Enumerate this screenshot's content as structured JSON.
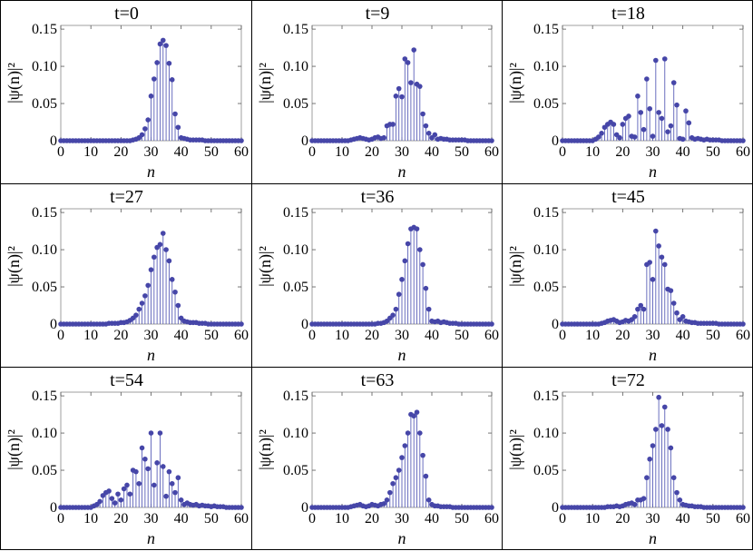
{
  "chart_data": [
    {
      "type": "scatter",
      "title": "t=0",
      "xlabel": "n",
      "ylabel": "|ψ(n)|²",
      "xlim": [
        0,
        60
      ],
      "ylim": [
        0,
        0.155
      ],
      "xticks": [
        "0",
        "10",
        "20",
        "30",
        "40",
        "50",
        "60"
      ],
      "yticks": [
        "0",
        "0.05",
        "0.10",
        "0.15"
      ],
      "x": [
        0,
        1,
        2,
        3,
        4,
        5,
        6,
        7,
        8,
        9,
        10,
        11,
        12,
        13,
        14,
        15,
        16,
        17,
        18,
        19,
        20,
        21,
        22,
        23,
        24,
        25,
        26,
        27,
        28,
        29,
        30,
        31,
        32,
        33,
        34,
        35,
        36,
        37,
        38,
        39,
        40,
        41,
        42,
        43,
        44,
        45,
        46,
        47,
        48,
        49,
        50,
        51,
        52,
        53,
        54,
        55,
        56,
        57,
        58,
        59,
        60
      ],
      "y": [
        0,
        0,
        0,
        0,
        0,
        0,
        0,
        0,
        0,
        0,
        0,
        0,
        0,
        0,
        0,
        0,
        0,
        0,
        0,
        0,
        0,
        0,
        0,
        0,
        0.001,
        0.002,
        0.004,
        0.008,
        0.016,
        0.028,
        0.06,
        0.083,
        0.105,
        0.13,
        0.135,
        0.128,
        0.104,
        0.082,
        0.036,
        0.018,
        0.004,
        0.003,
        0.002,
        0.001,
        0.001,
        0.001,
        0.001,
        0.001,
        0,
        0,
        0,
        0,
        0,
        0,
        0,
        0,
        0,
        0,
        0,
        0,
        0
      ]
    },
    {
      "type": "scatter",
      "title": "t=9",
      "xlabel": "n",
      "ylabel": "|ψ(n)|²",
      "xlim": [
        0,
        60
      ],
      "ylim": [
        0,
        0.155
      ],
      "xticks": [
        "0",
        "10",
        "20",
        "30",
        "40",
        "50",
        "60"
      ],
      "yticks": [
        "0",
        "0.05",
        "0.10",
        "0.15"
      ],
      "x": [
        0,
        1,
        2,
        3,
        4,
        5,
        6,
        7,
        8,
        9,
        10,
        11,
        12,
        13,
        14,
        15,
        16,
        17,
        18,
        19,
        20,
        21,
        22,
        23,
        24,
        25,
        26,
        27,
        28,
        29,
        30,
        31,
        32,
        33,
        34,
        35,
        36,
        37,
        38,
        39,
        40,
        41,
        42,
        43,
        44,
        45,
        46,
        47,
        48,
        49,
        50,
        51,
        52,
        53,
        54,
        55,
        56,
        57,
        58,
        59,
        60
      ],
      "y": [
        0,
        0,
        0,
        0,
        0,
        0,
        0,
        0,
        0,
        0,
        0,
        0,
        0,
        0.001,
        0.002,
        0.003,
        0.004,
        0.003,
        0.002,
        0.001,
        0.002,
        0.004,
        0.005,
        0.003,
        0.004,
        0.02,
        0.022,
        0.022,
        0.06,
        0.07,
        0.059,
        0.11,
        0.105,
        0.078,
        0.122,
        0.076,
        0.073,
        0.036,
        0.02,
        0.01,
        0.004,
        0.008,
        0.002,
        0.003,
        0.002,
        0.002,
        0.001,
        0.001,
        0.001,
        0.001,
        0.001,
        0.001,
        0,
        0,
        0,
        0,
        0,
        0,
        0,
        0,
        0
      ]
    },
    {
      "type": "scatter",
      "title": "t=18",
      "xlabel": "n",
      "ylabel": "|ψ(n)|²",
      "xlim": [
        0,
        60
      ],
      "ylim": [
        0,
        0.155
      ],
      "xticks": [
        "0",
        "10",
        "20",
        "30",
        "40",
        "50",
        "60"
      ],
      "yticks": [
        "0",
        "0.05",
        "0.10",
        "0.15"
      ],
      "x": [
        0,
        1,
        2,
        3,
        4,
        5,
        6,
        7,
        8,
        9,
        10,
        11,
        12,
        13,
        14,
        15,
        16,
        17,
        18,
        19,
        20,
        21,
        22,
        23,
        24,
        25,
        26,
        27,
        28,
        29,
        30,
        31,
        32,
        33,
        34,
        35,
        36,
        37,
        38,
        39,
        40,
        41,
        42,
        43,
        44,
        45,
        46,
        47,
        48,
        49,
        50,
        51,
        52,
        53,
        54,
        55,
        56,
        57,
        58,
        59,
        60
      ],
      "y": [
        0,
        0,
        0,
        0,
        0,
        0,
        0,
        0,
        0,
        0,
        0,
        0.002,
        0.005,
        0.01,
        0.018,
        0.022,
        0.025,
        0.022,
        0.008,
        0.004,
        0.022,
        0.03,
        0.033,
        0.006,
        0.005,
        0.06,
        0.038,
        0.015,
        0.083,
        0.043,
        0.006,
        0.108,
        0.038,
        0.03,
        0.11,
        0.012,
        0.02,
        0.078,
        0.048,
        0.003,
        0.002,
        0.04,
        0.024,
        0.004,
        0.002,
        0.003,
        0.002,
        0.001,
        0.002,
        0.001,
        0.001,
        0.001,
        0.001,
        0,
        0,
        0,
        0,
        0,
        0,
        0,
        0
      ]
    },
    {
      "type": "scatter",
      "title": "t=27",
      "xlabel": "n",
      "ylabel": "|ψ(n)|²",
      "xlim": [
        0,
        60
      ],
      "ylim": [
        0,
        0.155
      ],
      "xticks": [
        "0",
        "10",
        "20",
        "30",
        "40",
        "50",
        "60"
      ],
      "yticks": [
        "0",
        "0.05",
        "0.10",
        "0.15"
      ],
      "x": [
        0,
        1,
        2,
        3,
        4,
        5,
        6,
        7,
        8,
        9,
        10,
        11,
        12,
        13,
        14,
        15,
        16,
        17,
        18,
        19,
        20,
        21,
        22,
        23,
        24,
        25,
        26,
        27,
        28,
        29,
        30,
        31,
        32,
        33,
        34,
        35,
        36,
        37,
        38,
        39,
        40,
        41,
        42,
        43,
        44,
        45,
        46,
        47,
        48,
        49,
        50,
        51,
        52,
        53,
        54,
        55,
        56,
        57,
        58,
        59,
        60
      ],
      "y": [
        0,
        0,
        0,
        0,
        0,
        0,
        0,
        0,
        0,
        0,
        0,
        0,
        0,
        0,
        0,
        0,
        0.001,
        0.001,
        0.001,
        0.001,
        0.002,
        0.002,
        0.003,
        0.005,
        0.008,
        0.012,
        0.02,
        0.028,
        0.038,
        0.052,
        0.073,
        0.09,
        0.103,
        0.107,
        0.122,
        0.1,
        0.085,
        0.06,
        0.043,
        0.025,
        0.008,
        0.004,
        0.003,
        0.002,
        0.002,
        0.002,
        0.001,
        0.001,
        0.001,
        0,
        0,
        0,
        0,
        0,
        0,
        0,
        0,
        0,
        0,
        0,
        0
      ]
    },
    {
      "type": "scatter",
      "title": "t=36",
      "xlabel": "n",
      "ylabel": "|ψ(n)|²",
      "xlim": [
        0,
        60
      ],
      "ylim": [
        0,
        0.155
      ],
      "xticks": [
        "0",
        "10",
        "20",
        "30",
        "40",
        "50",
        "60"
      ],
      "yticks": [
        "0",
        "0.05",
        "0.10",
        "0.15"
      ],
      "x": [
        0,
        1,
        2,
        3,
        4,
        5,
        6,
        7,
        8,
        9,
        10,
        11,
        12,
        13,
        14,
        15,
        16,
        17,
        18,
        19,
        20,
        21,
        22,
        23,
        24,
        25,
        26,
        27,
        28,
        29,
        30,
        31,
        32,
        33,
        34,
        35,
        36,
        37,
        38,
        39,
        40,
        41,
        42,
        43,
        44,
        45,
        46,
        47,
        48,
        49,
        50,
        51,
        52,
        53,
        54,
        55,
        56,
        57,
        58,
        59,
        60
      ],
      "y": [
        0,
        0,
        0,
        0,
        0,
        0,
        0,
        0,
        0,
        0,
        0,
        0,
        0,
        0,
        0,
        0,
        0,
        0,
        0,
        0,
        0,
        0,
        0.001,
        0.001,
        0.002,
        0.004,
        0.008,
        0.012,
        0.02,
        0.04,
        0.06,
        0.085,
        0.108,
        0.128,
        0.13,
        0.128,
        0.1,
        0.08,
        0.048,
        0.02,
        0.004,
        0.003,
        0.004,
        0.002,
        0.003,
        0.002,
        0.001,
        0.001,
        0.001,
        0,
        0,
        0,
        0,
        0,
        0,
        0,
        0,
        0,
        0,
        0,
        0
      ]
    },
    {
      "type": "scatter",
      "title": "t=45",
      "xlabel": "n",
      "ylabel": "|ψ(n)|²",
      "xlim": [
        0,
        60
      ],
      "ylim": [
        0,
        0.155
      ],
      "xticks": [
        "0",
        "10",
        "20",
        "30",
        "40",
        "50",
        "60"
      ],
      "yticks": [
        "0",
        "0.05",
        "0.10",
        "0.15"
      ],
      "x": [
        0,
        1,
        2,
        3,
        4,
        5,
        6,
        7,
        8,
        9,
        10,
        11,
        12,
        13,
        14,
        15,
        16,
        17,
        18,
        19,
        20,
        21,
        22,
        23,
        24,
        25,
        26,
        27,
        28,
        29,
        30,
        31,
        32,
        33,
        34,
        35,
        36,
        37,
        38,
        39,
        40,
        41,
        42,
        43,
        44,
        45,
        46,
        47,
        48,
        49,
        50,
        51,
        52,
        53,
        54,
        55,
        56,
        57,
        58,
        59,
        60
      ],
      "y": [
        0,
        0,
        0,
        0,
        0,
        0,
        0,
        0,
        0,
        0,
        0,
        0,
        0,
        0.001,
        0.002,
        0.004,
        0.005,
        0.006,
        0.004,
        0.002,
        0.003,
        0.005,
        0.004,
        0.006,
        0.01,
        0.02,
        0.025,
        0.02,
        0.08,
        0.083,
        0.06,
        0.125,
        0.105,
        0.09,
        0.08,
        0.047,
        0.045,
        0.028,
        0.015,
        0.006,
        0.01,
        0.004,
        0.003,
        0.002,
        0.002,
        0.001,
        0.001,
        0.001,
        0.001,
        0.001,
        0.001,
        0.001,
        0,
        0,
        0,
        0,
        0,
        0,
        0,
        0,
        0
      ]
    },
    {
      "type": "scatter",
      "title": "t=54",
      "xlabel": "n",
      "ylabel": "|ψ(n)|²",
      "xlim": [
        0,
        60
      ],
      "ylim": [
        0,
        0.155
      ],
      "xticks": [
        "0",
        "10",
        "20",
        "30",
        "40",
        "50",
        "60"
      ],
      "yticks": [
        "0",
        "0.05",
        "0.10",
        "0.15"
      ],
      "x": [
        0,
        1,
        2,
        3,
        4,
        5,
        6,
        7,
        8,
        9,
        10,
        11,
        12,
        13,
        14,
        15,
        16,
        17,
        18,
        19,
        20,
        21,
        22,
        23,
        24,
        25,
        26,
        27,
        28,
        29,
        30,
        31,
        32,
        33,
        34,
        35,
        36,
        37,
        38,
        39,
        40,
        41,
        42,
        43,
        44,
        45,
        46,
        47,
        48,
        49,
        50,
        51,
        52,
        53,
        54,
        55,
        56,
        57,
        58,
        59,
        60
      ],
      "y": [
        0,
        0,
        0,
        0,
        0,
        0,
        0,
        0,
        0,
        0,
        0,
        0.002,
        0.004,
        0.008,
        0.016,
        0.02,
        0.022,
        0.012,
        0.006,
        0.018,
        0.01,
        0.025,
        0.03,
        0.018,
        0.05,
        0.048,
        0.032,
        0.08,
        0.065,
        0.052,
        0.1,
        0.03,
        0.06,
        0.1,
        0.055,
        0.015,
        0.048,
        0.032,
        0.02,
        0.04,
        0.01,
        0.004,
        0.006,
        0.004,
        0.003,
        0.004,
        0.002,
        0.003,
        0.002,
        0.002,
        0.001,
        0.002,
        0.001,
        0.001,
        0.001,
        0,
        0,
        0,
        0,
        0,
        0
      ]
    },
    {
      "type": "scatter",
      "title": "t=63",
      "xlabel": "n",
      "ylabel": "|ψ(n)|²",
      "xlim": [
        0,
        60
      ],
      "ylim": [
        0,
        0.155
      ],
      "xticks": [
        "0",
        "10",
        "20",
        "30",
        "40",
        "50",
        "60"
      ],
      "yticks": [
        "0",
        "0.05",
        "0.10",
        "0.15"
      ],
      "x": [
        0,
        1,
        2,
        3,
        4,
        5,
        6,
        7,
        8,
        9,
        10,
        11,
        12,
        13,
        14,
        15,
        16,
        17,
        18,
        19,
        20,
        21,
        22,
        23,
        24,
        25,
        26,
        27,
        28,
        29,
        30,
        31,
        32,
        33,
        34,
        35,
        36,
        37,
        38,
        39,
        40,
        41,
        42,
        43,
        44,
        45,
        46,
        47,
        48,
        49,
        50,
        51,
        52,
        53,
        54,
        55,
        56,
        57,
        58,
        59,
        60
      ],
      "y": [
        0,
        0,
        0,
        0,
        0,
        0,
        0,
        0,
        0,
        0,
        0,
        0,
        0,
        0.001,
        0.002,
        0.003,
        0.004,
        0.002,
        0.001,
        0.002,
        0.004,
        0.003,
        0.002,
        0.004,
        0.005,
        0.01,
        0.02,
        0.032,
        0.04,
        0.05,
        0.067,
        0.083,
        0.1,
        0.125,
        0.123,
        0.128,
        0.1,
        0.07,
        0.042,
        0.01,
        0.004,
        0.002,
        0.002,
        0.001,
        0.001,
        0.001,
        0.001,
        0,
        0,
        0,
        0,
        0,
        0,
        0,
        0,
        0,
        0,
        0,
        0,
        0,
        0
      ]
    },
    {
      "type": "scatter",
      "title": "t=72",
      "xlabel": "n",
      "ylabel": "|ψ(n)|²",
      "xlim": [
        0,
        60
      ],
      "ylim": [
        0,
        0.155
      ],
      "xticks": [
        "0",
        "10",
        "20",
        "30",
        "40",
        "50",
        "60"
      ],
      "yticks": [
        "0",
        "0.05",
        "0.10",
        "0.15"
      ],
      "x": [
        0,
        1,
        2,
        3,
        4,
        5,
        6,
        7,
        8,
        9,
        10,
        11,
        12,
        13,
        14,
        15,
        16,
        17,
        18,
        19,
        20,
        21,
        22,
        23,
        24,
        25,
        26,
        27,
        28,
        29,
        30,
        31,
        32,
        33,
        34,
        35,
        36,
        37,
        38,
        39,
        40,
        41,
        42,
        43,
        44,
        45,
        46,
        47,
        48,
        49,
        50,
        51,
        52,
        53,
        54,
        55,
        56,
        57,
        58,
        59,
        60
      ],
      "y": [
        0,
        0,
        0,
        0,
        0,
        0,
        0,
        0,
        0,
        0,
        0,
        0,
        0,
        0,
        0,
        0.001,
        0.001,
        0.001,
        0.002,
        0.001,
        0.002,
        0.004,
        0.005,
        0.006,
        0.004,
        0.01,
        0.01,
        0.012,
        0.04,
        0.065,
        0.083,
        0.105,
        0.148,
        0.11,
        0.135,
        0.105,
        0.08,
        0.04,
        0.02,
        0.01,
        0.004,
        0.003,
        0.002,
        0.002,
        0.001,
        0.001,
        0.001,
        0,
        0,
        0,
        0,
        0,
        0,
        0,
        0,
        0,
        0,
        0,
        0,
        0,
        0
      ]
    }
  ],
  "colors": {
    "stem": "#5a5fb8",
    "point": "#4646a8",
    "frame": "#888888",
    "border": "#000000"
  }
}
